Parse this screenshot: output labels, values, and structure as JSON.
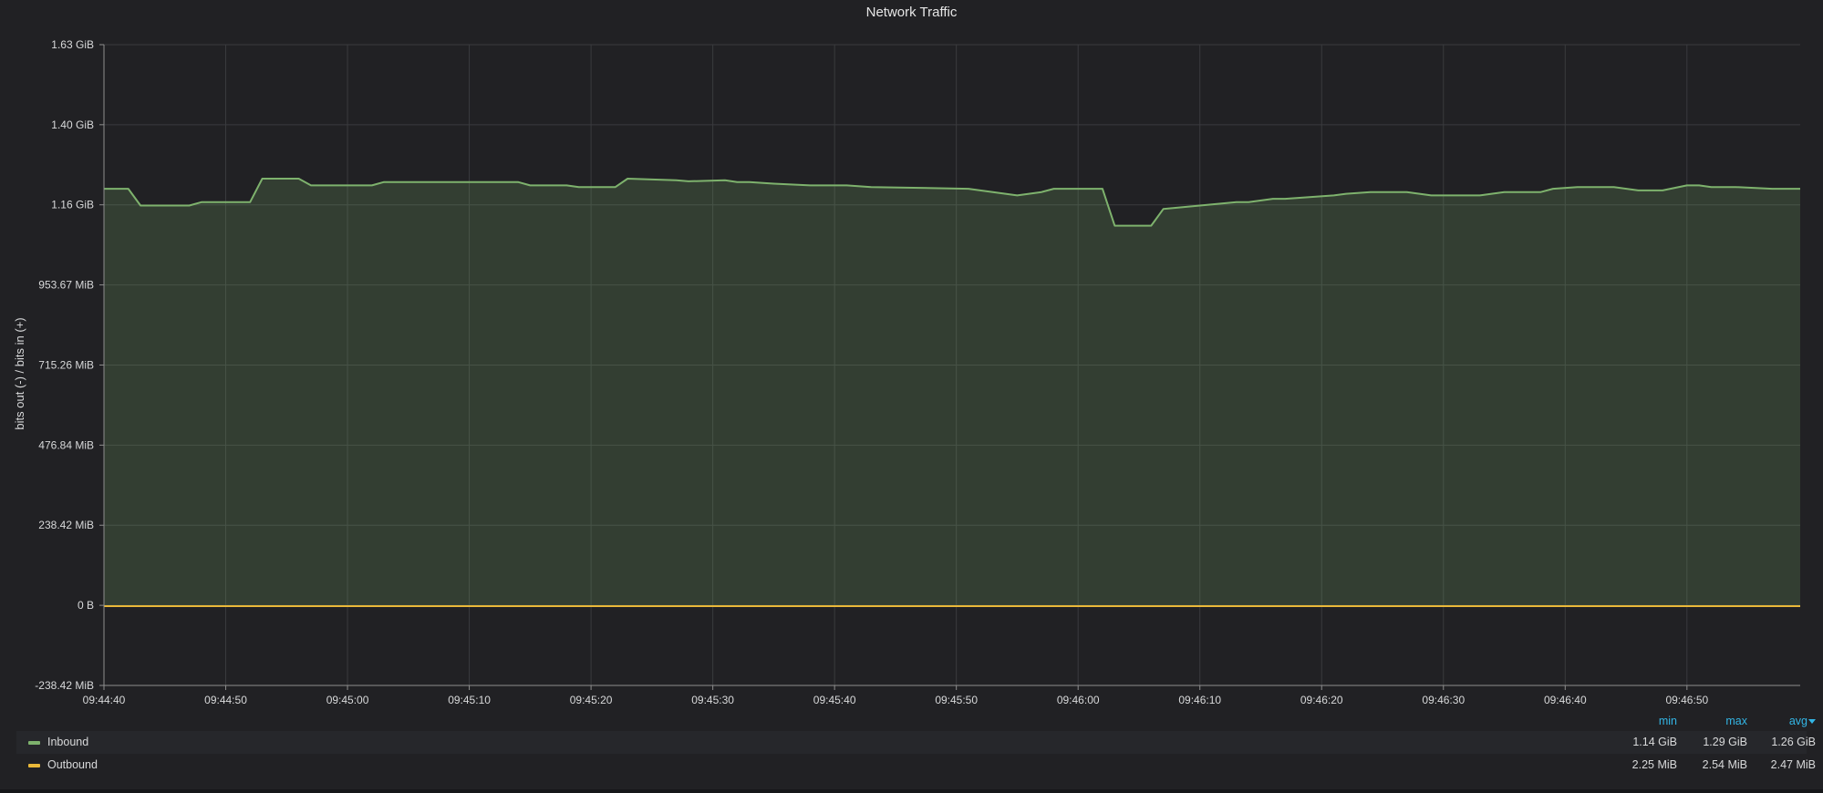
{
  "panel": {
    "title": "Network Traffic"
  },
  "legend": {
    "headers": {
      "min": "min",
      "max": "max",
      "avg": "avg"
    },
    "sort_icon": "caret-down-icon",
    "rows": [
      {
        "name": "Inbound",
        "color": "#7eb26d",
        "min": "1.14 GiB",
        "max": "1.29 GiB",
        "avg": "1.26 GiB"
      },
      {
        "name": "Outbound",
        "color": "#eab839",
        "min": "2.25 MiB",
        "max": "2.54 MiB",
        "avg": "2.47 MiB"
      }
    ]
  },
  "chart_data": {
    "type": "area",
    "title": "Network Traffic",
    "ylabel": "bits out (-) / bits in (+)",
    "xlabel": "",
    "y_unit": "MiB",
    "ylim": [
      -238.42,
      1668.79
    ],
    "y_ticks": [
      -238.42,
      0,
      238.42,
      476.84,
      715.26,
      953.67,
      1192.09,
      1430.51,
      1668.79
    ],
    "y_tick_labels": [
      "-238.42 MiB",
      "0 B",
      "238.42 MiB",
      "476.84 MiB",
      "715.26 MiB",
      "953.67 MiB",
      "1.16 GiB",
      "1.40 GiB",
      "1.63 GiB"
    ],
    "x_tick_labels": [
      "09:44:40",
      "09:44:50",
      "09:45:00",
      "09:45:10",
      "09:45:20",
      "09:45:30",
      "09:45:40",
      "09:45:50",
      "09:46:00",
      "09:46:10",
      "09:46:20",
      "09:46:30",
      "09:46:40",
      "09:46:50"
    ],
    "x_range_seconds": [
      0,
      139.3
    ],
    "grid": true,
    "legend_position": "bottom",
    "series": [
      {
        "name": "Inbound",
        "color": "#7eb26d",
        "fill": true,
        "x": [
          0,
          2,
          3,
          7,
          8,
          12,
          13,
          16,
          17,
          18,
          19,
          22,
          23,
          25,
          34,
          35,
          38,
          39,
          42,
          43,
          47,
          48,
          51,
          52,
          53,
          55,
          58,
          61,
          63,
          71,
          75,
          77,
          78,
          82,
          83,
          86,
          87,
          93,
          94,
          96,
          97,
          101,
          102,
          104,
          107,
          109,
          113,
          115,
          117,
          118,
          119,
          121,
          124,
          126,
          128,
          130,
          131,
          132,
          134,
          137,
          139.3
        ],
        "y": [
          1240,
          1240,
          1190,
          1190,
          1200,
          1200,
          1270,
          1270,
          1250,
          1250,
          1250,
          1250,
          1260,
          1260,
          1260,
          1250,
          1250,
          1245,
          1245,
          1270,
          1265,
          1262,
          1265,
          1260,
          1260,
          1255,
          1250,
          1250,
          1245,
          1240,
          1220,
          1230,
          1240,
          1240,
          1130,
          1130,
          1180,
          1200,
          1200,
          1210,
          1210,
          1220,
          1225,
          1230,
          1230,
          1220,
          1220,
          1230,
          1230,
          1230,
          1240,
          1245,
          1245,
          1235,
          1235,
          1250,
          1250,
          1245,
          1245,
          1240,
          1240
        ]
      },
      {
        "name": "Outbound",
        "color": "#eab839",
        "fill": false,
        "x": [
          0,
          139.3
        ],
        "y": [
          -2.47,
          -2.47
        ]
      }
    ]
  }
}
